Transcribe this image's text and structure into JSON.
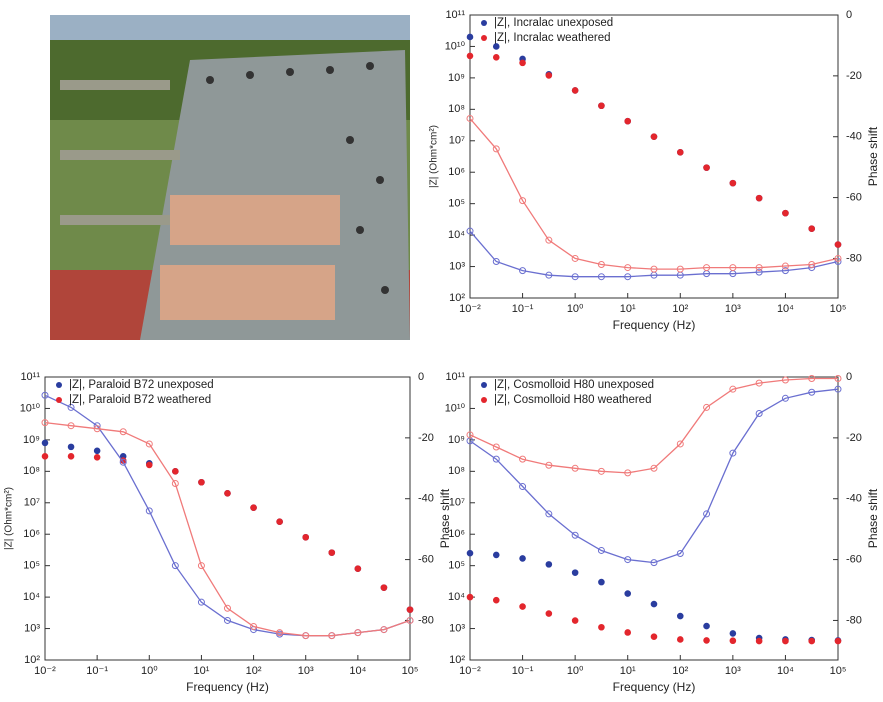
{
  "chart_data": [
    {
      "type": "scatter",
      "xlabel": "Frequency (Hz)",
      "ylabel": "|Z| (Ohm*cm²)",
      "y2label": "Phase shift",
      "xscale": "log",
      "yscale": "log",
      "legend": "upper left",
      "xlim": [
        0.01,
        100000
      ],
      "ylim": [
        100,
        100000000000
      ],
      "y2lim": [
        -93,
        0
      ],
      "xticks": [
        {
          "value": 0.01,
          "label": "10⁻²"
        },
        {
          "value": 0.1,
          "label": "10⁻¹"
        },
        {
          "value": 1,
          "label": "10⁰"
        },
        {
          "value": 10,
          "label": "10¹"
        },
        {
          "value": 100,
          "label": "10²"
        },
        {
          "value": 1000,
          "label": "10³"
        },
        {
          "value": 10000,
          "label": "10⁴"
        },
        {
          "value": 100000,
          "label": "10⁵"
        }
      ],
      "yticks": [
        {
          "value": 100,
          "label": "10²"
        },
        {
          "value": 1000,
          "label": "10³"
        },
        {
          "value": 10000,
          "label": "10⁴"
        },
        {
          "value": 100000,
          "label": "10⁵"
        },
        {
          "value": 1000000,
          "label": "10⁶"
        },
        {
          "value": 10000000,
          "label": "10⁷"
        },
        {
          "value": 100000000,
          "label": "10⁸"
        },
        {
          "value": 1000000000,
          "label": "10⁹"
        },
        {
          "value": 10000000000,
          "label": "10¹⁰"
        },
        {
          "value": 100000000000,
          "label": "10¹¹"
        }
      ],
      "y2ticks": [
        0,
        -20,
        -40,
        -60,
        -80
      ],
      "x": [
        0.01,
        0.0316,
        0.1,
        0.316,
        1,
        3.16,
        10,
        31.6,
        100,
        316,
        1000,
        3162,
        10000,
        31623,
        100000
      ],
      "series": [
        {
          "name": "|Z|, Incralac unexposed",
          "color": "#2a3d9f",
          "marker": "filled",
          "values": [
            20000000000.0,
            10000000000.0,
            4000000000.0,
            1300000000.0,
            400000000.0,
            130000000.0,
            42000000.0,
            13500000.0,
            4300000.0,
            1400000.0,
            450000.0,
            150000.0,
            50000.0,
            16000.0,
            5000.0
          ]
        },
        {
          "name": "|Z|, Incralac weathered",
          "color": "#e3262d",
          "marker": "filled",
          "values": [
            5000000000.0,
            4500000000.0,
            3000000000.0,
            1200000000.0,
            400000000.0,
            130000000.0,
            42000000.0,
            13500000.0,
            4300000.0,
            1400000.0,
            450000.0,
            150000.0,
            50000.0,
            16000.0,
            5000.0
          ]
        },
        {
          "color": "#6a6fd0",
          "marker": "open",
          "line": true,
          "axis": "y2",
          "values": [
            -71,
            -81,
            -84,
            -85.5,
            -86,
            -86,
            -86,
            -85.5,
            -85.5,
            -85,
            -85,
            -84.5,
            -84,
            -83,
            -81
          ]
        },
        {
          "color": "#f07a7a",
          "marker": "open",
          "line": true,
          "axis": "y2",
          "values": [
            -34,
            -44,
            -61,
            -74,
            -80,
            -82,
            -83,
            -83.5,
            -83.5,
            -83,
            -83,
            -83,
            -82.5,
            -82,
            -80
          ]
        }
      ]
    },
    {
      "type": "scatter",
      "xlabel": "Frequency (Hz)",
      "ylabel": "|Z| (Ohm*cm²)",
      "y2label": "Phase shift",
      "xscale": "log",
      "yscale": "log",
      "legend": "upper left",
      "xlim": [
        0.01,
        100000
      ],
      "ylim": [
        100,
        100000000000
      ],
      "y2lim": [
        -93,
        0
      ],
      "xticks": [
        {
          "value": 0.01,
          "label": "10⁻²"
        },
        {
          "value": 0.1,
          "label": "10⁻¹"
        },
        {
          "value": 1,
          "label": "10⁰"
        },
        {
          "value": 10,
          "label": "10¹"
        },
        {
          "value": 100,
          "label": "10²"
        },
        {
          "value": 1000,
          "label": "10³"
        },
        {
          "value": 10000,
          "label": "10⁴"
        },
        {
          "value": 100000,
          "label": "10⁵"
        }
      ],
      "yticks": [
        {
          "value": 100,
          "label": "10²"
        },
        {
          "value": 1000,
          "label": "10³"
        },
        {
          "value": 10000,
          "label": "10⁴"
        },
        {
          "value": 100000,
          "label": "10⁵"
        },
        {
          "value": 1000000,
          "label": "10⁶"
        },
        {
          "value": 10000000,
          "label": "10⁷"
        },
        {
          "value": 100000000,
          "label": "10⁸"
        },
        {
          "value": 1000000000,
          "label": "10⁹"
        },
        {
          "value": 10000000000,
          "label": "10¹⁰"
        },
        {
          "value": 100000000000,
          "label": "10¹¹"
        }
      ],
      "y2ticks": [
        0,
        -20,
        -40,
        -60,
        -80
      ],
      "x": [
        0.01,
        0.0316,
        0.1,
        0.316,
        1,
        3.16,
        10,
        31.6,
        100,
        316,
        1000,
        3162,
        10000,
        31623,
        100000
      ],
      "series": [
        {
          "name": "|Z|, Paraloid B72 unexposed",
          "color": "#2a3d9f",
          "marker": "filled",
          "values": [
            800000000.0,
            600000000.0,
            450000000.0,
            300000000.0,
            180000000.0,
            100000000.0,
            45000000.0,
            20000000.0,
            7000000.0,
            2500000.0,
            800000.0,
            260000.0,
            80000.0,
            20000.0,
            4000.0
          ]
        },
        {
          "name": "|Z|, Paraloid B72 weathered",
          "color": "#e3262d",
          "marker": "filled",
          "values": [
            300000000.0,
            300000000.0,
            280000000.0,
            220000000.0,
            160000000.0,
            100000000.0,
            45000000.0,
            20000000.0,
            7000000.0,
            2500000.0,
            800000.0,
            260000.0,
            80000.0,
            20000.0,
            4000.0
          ]
        },
        {
          "color": "#6a6fd0",
          "marker": "open",
          "line": true,
          "axis": "y2",
          "values": [
            -6,
            -10,
            -16,
            -28,
            -44,
            -62,
            -74,
            -80,
            -83,
            -84.5,
            -85,
            -85,
            -84,
            -83,
            -80
          ]
        },
        {
          "color": "#f07a7a",
          "marker": "open",
          "line": true,
          "axis": "y2",
          "values": [
            -15,
            -16,
            -17,
            -18,
            -22,
            -35,
            -62,
            -76,
            -82,
            -84,
            -85,
            -85,
            -84,
            -83,
            -80
          ]
        }
      ]
    },
    {
      "type": "scatter",
      "xlabel": "Frequency (Hz)",
      "y2label": "Phase shift",
      "xscale": "log",
      "yscale": "log",
      "legend": "upper left",
      "xlim": [
        0.01,
        100000
      ],
      "ylim": [
        100,
        100000000000
      ],
      "y2lim": [
        -93,
        0
      ],
      "xticks": [
        {
          "value": 0.01,
          "label": "10⁻²"
        },
        {
          "value": 0.1,
          "label": "10⁻¹"
        },
        {
          "value": 1,
          "label": "10⁰"
        },
        {
          "value": 10,
          "label": "10¹"
        },
        {
          "value": 100,
          "label": "10²"
        },
        {
          "value": 1000,
          "label": "10³"
        },
        {
          "value": 10000,
          "label": "10⁴"
        },
        {
          "value": 100000,
          "label": "10⁵"
        }
      ],
      "yticks": [
        {
          "value": 100,
          "label": "10²"
        },
        {
          "value": 1000,
          "label": "10³"
        },
        {
          "value": 10000,
          "label": "10⁴"
        },
        {
          "value": 100000,
          "label": "10⁵"
        },
        {
          "value": 1000000,
          "label": "10⁶"
        },
        {
          "value": 10000000,
          "label": "10⁷"
        },
        {
          "value": 100000000,
          "label": "10⁸"
        },
        {
          "value": 1000000000,
          "label": "10⁹"
        },
        {
          "value": 10000000000,
          "label": "10¹⁰"
        },
        {
          "value": 100000000000,
          "label": "10¹¹"
        }
      ],
      "y2ticks": [
        0,
        -20,
        -40,
        -60,
        -80
      ],
      "x": [
        0.01,
        0.0316,
        0.1,
        0.316,
        1,
        3.16,
        10,
        31.6,
        100,
        316,
        1000,
        3162,
        10000,
        31623,
        100000
      ],
      "series": [
        {
          "name": "|Z|, Cosmolloid H80 unexposed",
          "color": "#2a3d9f",
          "marker": "filled",
          "values": [
            250000.0,
            220000.0,
            170000.0,
            110000.0,
            60000.0,
            30000.0,
            13000.0,
            6000.0,
            2500.0,
            1200.0,
            700,
            500,
            450,
            430,
            420
          ]
        },
        {
          "name": "|Z|, Cosmolloid H80 weathered",
          "color": "#e3262d",
          "marker": "filled",
          "values": [
            10000.0,
            8000.0,
            5000.0,
            3000.0,
            1800.0,
            1100.0,
            750,
            550,
            450,
            420,
            410,
            400,
            400,
            400,
            400
          ]
        },
        {
          "color": "#6a6fd0",
          "marker": "open",
          "line": true,
          "axis": "y2",
          "values": [
            -21,
            -27,
            -36,
            -45,
            -52,
            -57,
            -60,
            -61,
            -58,
            -45,
            -25,
            -12,
            -7,
            -5,
            -4
          ]
        },
        {
          "color": "#f07a7a",
          "marker": "open",
          "line": true,
          "axis": "y2",
          "values": [
            -19,
            -23,
            -27,
            -29,
            -30,
            -31,
            -31.5,
            -30,
            -22,
            -10,
            -4,
            -2,
            -1,
            -0.5,
            -0.5
          ]
        }
      ]
    }
  ]
}
